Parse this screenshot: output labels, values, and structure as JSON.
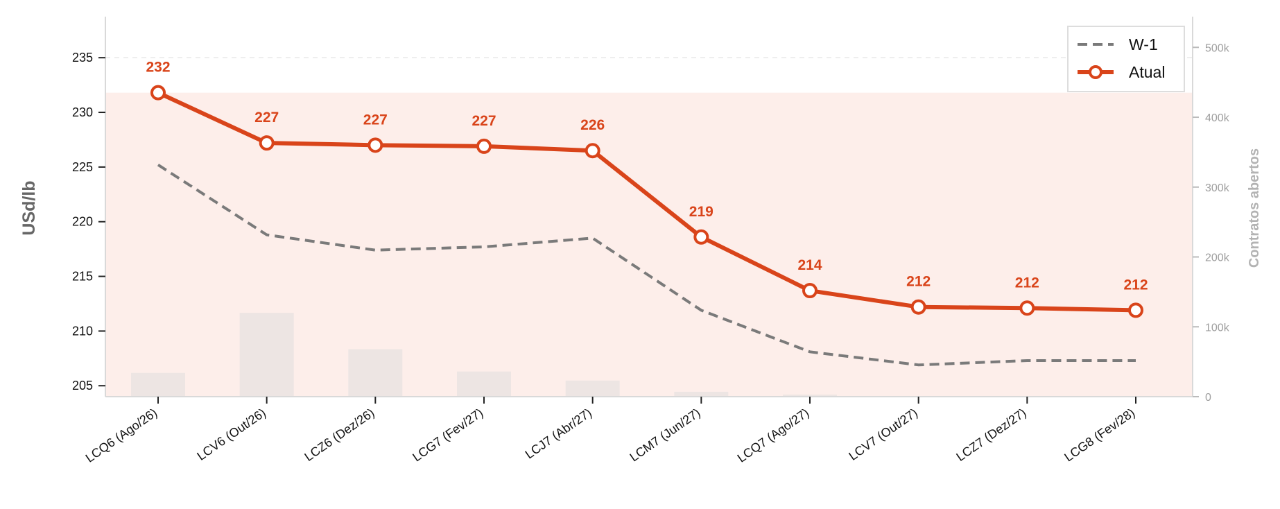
{
  "chart_data": {
    "type": "line",
    "categories": [
      "LCQ6 (Ago/26)",
      "LCV6 (Out/26)",
      "LCZ6 (Dez/26)",
      "LCG7 (Fev/27)",
      "LCJ7 (Abr/27)",
      "LCM7 (Jun/27)",
      "LCQ7 (Ago/27)",
      "LCV7 (Out/27)",
      "LCZ7 (Dez/27)",
      "LCG8 (Fev/28)"
    ],
    "series": [
      {
        "name": "Atual",
        "color": "#d9441a",
        "values": [
          231.8,
          227.2,
          227.0,
          226.9,
          226.5,
          218.6,
          213.7,
          212.2,
          212.1,
          211.9
        ],
        "labels": [
          "232",
          "227",
          "227",
          "227",
          "226",
          "219",
          "214",
          "212",
          "212",
          "212"
        ]
      },
      {
        "name": "W-1",
        "color": "#7a7a7a",
        "values": [
          225.2,
          218.8,
          217.4,
          217.7,
          218.5,
          211.9,
          208.1,
          206.9,
          207.3,
          207.3
        ]
      }
    ],
    "open_interest": {
      "values": [
        34000,
        120000,
        68000,
        36000,
        23000,
        7000,
        3000,
        0,
        0,
        0
      ],
      "color": "#ede5e3"
    },
    "ylabel": "USd/lb",
    "ylabel_right": "Contratos abertos",
    "ylim": [
      204,
      238.5
    ],
    "yticks": [
      205,
      210,
      215,
      220,
      225,
      230,
      235
    ],
    "ylim_right": [
      0,
      540000
    ],
    "yticks_right": [
      0,
      100000,
      200000,
      300000,
      400000,
      500000
    ],
    "yticks_right_labels": [
      "0",
      "100k",
      "200k",
      "300k",
      "400k",
      "500k"
    ],
    "shade_color": "#fdeeea",
    "grid": true,
    "legend": "top-right"
  }
}
